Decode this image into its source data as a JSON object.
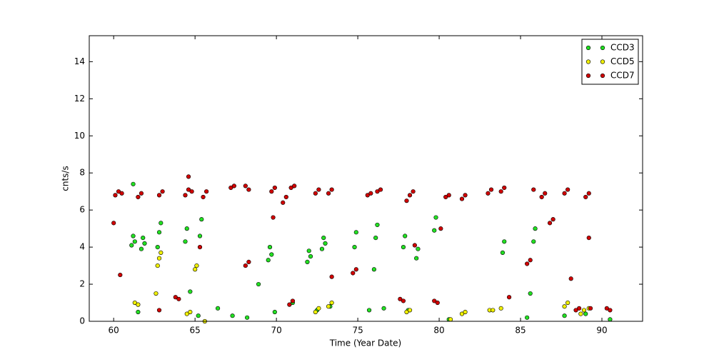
{
  "chart_data": {
    "type": "scatter",
    "x_label": "Time (Year Date)",
    "y_label": "cnts/s",
    "xlim": [
      58.5,
      92.5
    ],
    "ylim": [
      0,
      15.4
    ],
    "xticks": [
      60,
      65,
      70,
      75,
      80,
      85,
      90
    ],
    "yticks": [
      0,
      2,
      4,
      6,
      8,
      10,
      12,
      14
    ],
    "legend": "upper right",
    "series": [
      {
        "name": "CCD3",
        "color": "#22e022",
        "x": [
          61.1,
          61.2,
          61.3,
          61.7,
          61.8,
          61.9,
          62.7,
          62.8,
          62.9,
          64.4,
          64.5,
          65.3,
          65.4,
          69.5,
          69.6,
          69.7,
          71.9,
          72.0,
          72.1,
          72.8,
          72.9,
          73.0,
          74.8,
          74.9,
          76.1,
          76.2,
          77.8,
          77.9,
          78.6,
          78.7,
          79.7,
          79.8,
          83.9,
          84.0,
          85.8,
          85.9,
          85.6,
          61.5,
          65.2,
          66.4,
          67.3,
          68.2,
          69.9,
          71.0,
          72.5,
          73.3,
          75.7,
          76.6,
          78.1,
          80.6,
          85.4,
          87.7,
          89.0,
          90.5,
          61.2,
          64.7,
          68.9,
          76.0
        ],
        "values": [
          4.1,
          4.6,
          4.3,
          3.9,
          4.5,
          4.2,
          4.0,
          4.8,
          5.3,
          4.3,
          5.0,
          4.6,
          5.5,
          3.3,
          4.0,
          3.6,
          3.2,
          3.8,
          3.5,
          3.9,
          4.5,
          4.2,
          4.0,
          4.8,
          4.5,
          5.2,
          4.0,
          4.6,
          3.4,
          3.9,
          4.9,
          5.6,
          3.7,
          4.3,
          4.3,
          5.0,
          1.5,
          0.5,
          0.3,
          0.7,
          0.3,
          0.2,
          0.5,
          1.0,
          0.6,
          0.8,
          0.6,
          0.7,
          0.6,
          0.1,
          0.2,
          0.3,
          0.4,
          0.1,
          7.4,
          1.6,
          2.0,
          2.8
        ]
      },
      {
        "name": "CCD5",
        "color": "#f0f000",
        "x": [
          61.3,
          61.5,
          62.7,
          62.8,
          62.9,
          64.5,
          64.7,
          65.0,
          65.1,
          65.6,
          72.4,
          72.6,
          73.2,
          73.4,
          78.0,
          78.2,
          81.4,
          81.6,
          83.1,
          83.3,
          83.8,
          87.7,
          87.9,
          88.7,
          88.9,
          89.2,
          62.6,
          80.7
        ],
        "values": [
          1.0,
          0.9,
          3.0,
          3.4,
          3.7,
          0.4,
          0.5,
          2.8,
          3.0,
          0.0,
          0.5,
          0.7,
          0.8,
          1.0,
          0.5,
          0.6,
          0.4,
          0.5,
          0.6,
          0.6,
          0.7,
          0.8,
          1.0,
          0.4,
          0.6,
          0.7,
          1.5,
          0.1
        ]
      },
      {
        "name": "CCD7",
        "color": "#d00000",
        "x": [
          60.1,
          60.3,
          60.5,
          61.5,
          61.7,
          62.8,
          63.0,
          64.4,
          64.6,
          64.8,
          65.5,
          65.7,
          67.2,
          67.4,
          68.1,
          68.3,
          69.7,
          69.9,
          70.4,
          70.6,
          70.9,
          71.1,
          72.4,
          72.6,
          73.2,
          73.4,
          74.7,
          74.9,
          75.6,
          75.8,
          76.2,
          76.4,
          77.6,
          77.8,
          78.0,
          78.2,
          78.4,
          79.7,
          79.9,
          80.4,
          80.6,
          81.4,
          81.6,
          83.0,
          83.2,
          83.8,
          84.0,
          85.4,
          85.6,
          85.8,
          86.3,
          86.5,
          86.8,
          87.0,
          87.7,
          87.9,
          89.0,
          89.2,
          63.8,
          64.0,
          62.8,
          68.1,
          68.3,
          70.8,
          71.0,
          88.4,
          88.6,
          89.3,
          90.3,
          90.5,
          84.3,
          60.0,
          60.4,
          64.6,
          65.3,
          69.8,
          73.4,
          78.5,
          80.1,
          88.1,
          89.2
        ],
        "values": [
          6.8,
          7.0,
          6.9,
          6.7,
          6.9,
          6.8,
          7.0,
          6.8,
          7.1,
          7.0,
          6.7,
          7.0,
          7.2,
          7.3,
          7.3,
          7.1,
          7.0,
          7.2,
          6.4,
          6.7,
          7.2,
          7.3,
          6.9,
          7.1,
          6.9,
          7.1,
          2.6,
          2.8,
          6.8,
          6.9,
          7.0,
          7.1,
          1.2,
          1.1,
          6.5,
          6.8,
          7.0,
          1.1,
          1.0,
          6.7,
          6.8,
          6.6,
          6.8,
          6.9,
          7.1,
          7.0,
          7.2,
          3.1,
          3.3,
          7.1,
          6.7,
          6.9,
          5.3,
          5.5,
          6.9,
          7.1,
          6.7,
          6.9,
          1.3,
          1.2,
          0.6,
          3.0,
          3.2,
          0.9,
          1.1,
          0.6,
          0.7,
          0.7,
          0.7,
          0.6,
          1.3,
          5.3,
          2.5,
          7.8,
          4.0,
          5.6,
          2.4,
          4.1,
          5.0,
          2.3,
          4.5
        ]
      }
    ]
  }
}
